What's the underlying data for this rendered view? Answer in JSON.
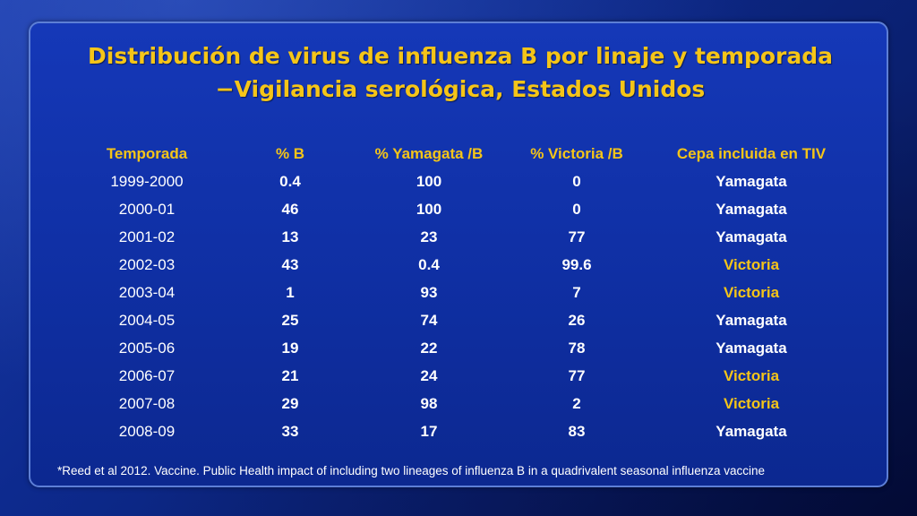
{
  "slide": {
    "title_line1": "Distribución de virus de influenza B por linaje y temporada",
    "title_line2": "−Vigilancia serológica, Estados Unidos",
    "footnote": "*Reed et al 2012. Vaccine. Public Health impact of including two lineages of influenza B in a quadrivalent seasonal influenza vaccine"
  },
  "colors": {
    "title": "#f5c518",
    "header": "#f5c518",
    "victoria_highlight": "#f5c518",
    "cell_text": "#ffffff",
    "background": "#0f2fa3"
  },
  "chart_data": {
    "type": "table",
    "columns": [
      "Temporada",
      "% B",
      "% Yamagata /B",
      "% Victoria /B",
      "Cepa incluida en TIV"
    ],
    "rows": [
      [
        "1999-2000",
        "0.4",
        "100",
        "0",
        "Yamagata"
      ],
      [
        "2000-01",
        "46",
        "100",
        "0",
        "Yamagata"
      ],
      [
        "2001-02",
        "13",
        "23",
        "77",
        "Yamagata"
      ],
      [
        "2002-03",
        "43",
        "0.4",
        "99.6",
        "Victoria"
      ],
      [
        "2003-04",
        "1",
        "93",
        "7",
        "Victoria"
      ],
      [
        "2004-05",
        "25",
        "74",
        "26",
        "Yamagata"
      ],
      [
        "2005-06",
        "19",
        "22",
        "78",
        "Yamagata"
      ],
      [
        "2006-07",
        "21",
        "24",
        "77",
        "Victoria"
      ],
      [
        "2007-08",
        "29",
        "98",
        "2",
        "Victoria"
      ],
      [
        "2008-09",
        "33",
        "17",
        "83",
        "Yamagata"
      ]
    ]
  }
}
